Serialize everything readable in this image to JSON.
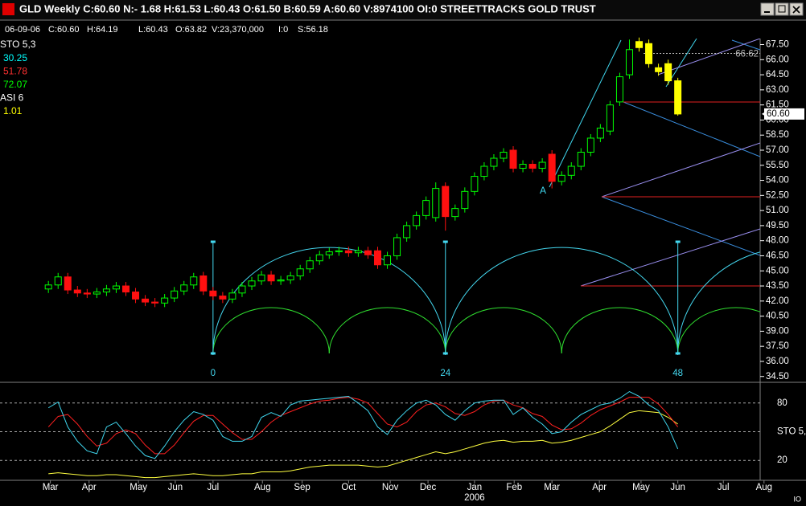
{
  "window": {
    "title": "GLD Weekly C:60.60 N:- 1.68 H:61.53 L:60.43 O:61.50 B:60.59 A:60.60 V:8974100 OI:0 STREETTRACKS GOLD TRUST"
  },
  "info_bar": [
    "06-09-06",
    "C:60.60",
    "H:64.19",
    "L:60.43",
    "O:63.82",
    "V:23,370,000",
    "I:0",
    "S:56.18"
  ],
  "indicators": [
    {
      "label": "STO 5,3",
      "color": "#ffffff"
    },
    {
      "label": "30.25",
      "color": "#00ffff"
    },
    {
      "label": "51.78",
      "color": "#ff3030"
    },
    {
      "label": "72.07",
      "color": "#00ff00"
    },
    {
      "label": "ASI 6",
      "color": "#ffffff"
    },
    {
      "label": "1.01",
      "color": "#ffff00"
    }
  ],
  "annotations": [
    "A"
  ],
  "corner_label": "IO",
  "chart_data": [
    {
      "type": "candlestick",
      "xlim": [
        -5,
        73.5
      ],
      "ylim": [
        34.0,
        68.1
      ],
      "yticks": [
        {
          "value": 67.5,
          "label": "67.50"
        },
        {
          "value": 66,
          "label": "66.00"
        },
        {
          "value": 64.5,
          "label": "64.50"
        },
        {
          "value": 63,
          "label": "63.00"
        },
        {
          "value": 61.5,
          "label": "61.50"
        },
        {
          "value": 60,
          "label": "60.00"
        },
        {
          "value": 58.5,
          "label": "58.50"
        },
        {
          "value": 57,
          "label": "57.00"
        },
        {
          "value": 55.5,
          "label": "55.50"
        },
        {
          "value": 54,
          "label": "54.00"
        },
        {
          "value": 52.5,
          "label": "52.50"
        },
        {
          "value": 51,
          "label": "51.00"
        },
        {
          "value": 49.5,
          "label": "49.50"
        },
        {
          "value": 48,
          "label": "48.00"
        },
        {
          "value": 46.5,
          "label": "46.50"
        },
        {
          "value": 45,
          "label": "45.00"
        },
        {
          "value": 43.5,
          "label": "43.50"
        },
        {
          "value": 42,
          "label": "42.00"
        },
        {
          "value": 40.5,
          "label": "40.50"
        },
        {
          "value": 39,
          "label": "39.00"
        },
        {
          "value": 37.5,
          "label": "37.50"
        },
        {
          "value": 36,
          "label": "36.00"
        },
        {
          "value": 34.5,
          "label": "34.50"
        }
      ],
      "last_price": {
        "value": 60.6,
        "label": "60.60"
      },
      "reference_line": {
        "value": 66.62,
        "label": "66.62"
      },
      "cycles": {
        "x": [
          17,
          41,
          65
        ],
        "labels": [
          "0",
          "24",
          "48"
        ],
        "color": "#44d8f0"
      },
      "series": [
        {
          "up_color": "#00ff00",
          "down_color": "#ff1010",
          "x": [
            0,
            1,
            2,
            3,
            4,
            5,
            6,
            7,
            8,
            9,
            10,
            11,
            12,
            13,
            14,
            15,
            16,
            17,
            18,
            19,
            20,
            21,
            22,
            23,
            24,
            25,
            26,
            27,
            28,
            29,
            30,
            31,
            32,
            33,
            34,
            35,
            36,
            37,
            38,
            39,
            40,
            41,
            42,
            43,
            44,
            45,
            46,
            47,
            48,
            49,
            50,
            51,
            52,
            53,
            54,
            55,
            56,
            57,
            58,
            59,
            60
          ],
          "open": [
            43.2,
            43.6,
            44.4,
            43.1,
            42.8,
            42.7,
            42.9,
            43.2,
            43.5,
            42.9,
            42.2,
            41.9,
            41.8,
            42.3,
            43.0,
            43.6,
            44.5,
            43.0,
            42.5,
            42.2,
            42.8,
            43.5,
            44.0,
            44.6,
            44.0,
            44.1,
            44.5,
            45.2,
            46.0,
            46.6,
            46.9,
            47.0,
            46.8,
            47.0,
            47.0,
            45.6,
            46.5,
            48.3,
            49.5,
            50.5,
            50.3,
            53.4,
            50.4,
            51.2,
            52.9,
            54.4,
            55.4,
            56.2,
            57.0,
            55.2,
            55.6,
            55.2,
            56.6,
            53.9,
            54.5,
            55.4,
            56.8,
            58.2,
            58.9,
            61.8,
            64.5
          ],
          "high": [
            44.0,
            44.8,
            44.8,
            43.5,
            43.2,
            43.3,
            43.6,
            43.9,
            43.9,
            43.3,
            42.6,
            42.3,
            42.7,
            43.4,
            44.0,
            44.8,
            44.9,
            43.4,
            42.9,
            43.2,
            43.9,
            44.4,
            45.0,
            45.0,
            44.5,
            44.9,
            45.6,
            46.4,
            47.0,
            47.3,
            47.4,
            47.4,
            47.4,
            47.4,
            47.4,
            46.9,
            48.7,
            49.9,
            50.9,
            52.4,
            53.8,
            53.8,
            51.6,
            53.3,
            54.8,
            55.8,
            56.6,
            57.2,
            57.4,
            56.0,
            56.0,
            56.2,
            57.0,
            54.9,
            55.8,
            57.2,
            58.6,
            59.6,
            61.9,
            64.7,
            68.0
          ],
          "low": [
            42.8,
            43.2,
            42.7,
            42.4,
            42.3,
            42.3,
            42.5,
            42.8,
            42.5,
            41.8,
            41.5,
            41.4,
            41.4,
            41.9,
            42.6,
            43.2,
            42.6,
            42.1,
            41.8,
            41.8,
            42.4,
            43.1,
            43.6,
            43.6,
            43.6,
            43.7,
            44.1,
            44.8,
            45.6,
            46.2,
            46.5,
            46.4,
            46.4,
            46.2,
            45.2,
            45.2,
            46.1,
            47.9,
            49.1,
            50.1,
            49.9,
            49.0,
            50.0,
            50.8,
            52.5,
            54.0,
            55.0,
            55.8,
            54.8,
            54.8,
            54.8,
            54.8,
            53.2,
            53.5,
            54.1,
            55.0,
            56.4,
            57.8,
            58.5,
            61.4,
            64.1
          ],
          "close": [
            43.6,
            44.4,
            43.1,
            42.8,
            42.7,
            42.9,
            43.2,
            43.5,
            42.9,
            42.2,
            41.9,
            41.8,
            42.3,
            43.0,
            43.6,
            44.4,
            43.0,
            42.5,
            42.2,
            42.8,
            43.5,
            44.0,
            44.6,
            44.0,
            44.1,
            44.5,
            45.2,
            46.0,
            46.6,
            46.9,
            47.0,
            46.8,
            47.0,
            46.6,
            45.6,
            46.5,
            48.3,
            49.5,
            50.5,
            52.0,
            53.2,
            50.4,
            51.2,
            52.9,
            54.4,
            55.4,
            56.2,
            56.8,
            55.2,
            55.6,
            55.2,
            55.8,
            53.9,
            54.5,
            55.4,
            56.8,
            58.2,
            59.2,
            61.5,
            64.3,
            67.0
          ]
        },
        {
          "color": "#ffff00",
          "x": [
            61,
            62,
            63,
            64,
            65
          ],
          "open": [
            67.8,
            67.6,
            65.2,
            65.6,
            63.9
          ],
          "high": [
            68.2,
            68.0,
            65.6,
            66.0,
            64.2
          ],
          "low": [
            66.8,
            65.2,
            64.4,
            63.5,
            60.43
          ],
          "close": [
            67.2,
            65.6,
            64.8,
            63.9,
            60.6
          ]
        }
      ],
      "xticks": [
        {
          "value": 0.2,
          "label": "Mar"
        },
        {
          "value": 4.2,
          "label": "Apr"
        },
        {
          "value": 9.3,
          "label": "May"
        },
        {
          "value": 13.1,
          "label": "Jun"
        },
        {
          "value": 17,
          "label": "Jul"
        },
        {
          "value": 22.1,
          "label": "Aug"
        },
        {
          "value": 26.2,
          "label": "Sep"
        },
        {
          "value": 31,
          "label": "Oct"
        },
        {
          "value": 35.3,
          "label": "Nov"
        },
        {
          "value": 39.2,
          "label": "Dec"
        },
        {
          "value": 44,
          "label": "Jan"
        },
        {
          "value": 48.1,
          "label": "Feb"
        },
        {
          "value": 52,
          "label": "Mar"
        },
        {
          "value": 56.9,
          "label": "Apr"
        },
        {
          "value": 61.2,
          "label": "May"
        },
        {
          "value": 65,
          "label": "Jun"
        },
        {
          "value": 69.7,
          "label": "Jul"
        },
        {
          "value": 73.9,
          "label": "Aug"
        }
      ],
      "year_ticks": [
        {
          "value": 44,
          "label": "2006"
        }
      ]
    },
    {
      "type": "line",
      "ylim": [
        0,
        100
      ],
      "yticks": [
        20,
        {
          "value": 50,
          "label": "STO 5,"
        },
        80
      ],
      "grid": true,
      "x": [
        0,
        1,
        2,
        3,
        4,
        5,
        6,
        7,
        8,
        9,
        10,
        11,
        12,
        13,
        14,
        15,
        16,
        17,
        18,
        19,
        20,
        21,
        22,
        23,
        24,
        25,
        26,
        27,
        28,
        29,
        30,
        31,
        32,
        33,
        34,
        35,
        36,
        37,
        38,
        39,
        40,
        41,
        42,
        43,
        44,
        45,
        46,
        47,
        48,
        49,
        50,
        51,
        52,
        53,
        54,
        55,
        56,
        57,
        58,
        59,
        60,
        61,
        62,
        63,
        64,
        65
      ],
      "series": [
        {
          "color": "#ffff40",
          "values": [
            6,
            7,
            6,
            5,
            4,
            4,
            5,
            5,
            4,
            3,
            2,
            2,
            3,
            4,
            5,
            6,
            5,
            4,
            4,
            5,
            6,
            6,
            8,
            8,
            8,
            9,
            11,
            13,
            14,
            15,
            15,
            15,
            15,
            14,
            13,
            14,
            17,
            20,
            23,
            26,
            29,
            27,
            29,
            32,
            35,
            38,
            40,
            41,
            39,
            40,
            40,
            41,
            38,
            39,
            41,
            44,
            47,
            50,
            56,
            63,
            70,
            72,
            71,
            70,
            65,
            58
          ]
        },
        {
          "color": "#ff2020",
          "values": [
            55,
            66,
            68,
            58,
            45,
            35,
            38,
            48,
            52,
            48,
            36,
            27,
            27,
            36,
            49,
            61,
            67,
            67,
            58,
            49,
            42,
            42,
            50,
            60,
            67,
            71,
            75,
            79,
            82,
            83,
            85,
            86,
            84,
            80,
            69,
            58,
            55,
            60,
            71,
            78,
            80,
            76,
            69,
            67,
            71,
            78,
            82,
            83,
            78,
            75,
            69,
            66,
            57,
            52,
            53,
            59,
            67,
            73,
            77,
            81,
            86,
            86,
            86,
            79,
            68,
            55
          ]
        },
        {
          "color": "#40d8f0",
          "values": [
            75,
            81,
            55,
            40,
            30,
            27,
            55,
            60,
            48,
            35,
            25,
            22,
            35,
            50,
            62,
            71,
            68,
            62,
            45,
            40,
            40,
            45,
            65,
            70,
            66,
            78,
            82,
            83,
            84,
            85,
            86,
            87,
            80,
            72,
            55,
            47,
            62,
            72,
            80,
            83,
            78,
            68,
            62,
            72,
            80,
            82,
            83,
            83,
            68,
            75,
            65,
            58,
            48,
            50,
            60,
            68,
            73,
            78,
            80,
            85,
            92,
            87,
            78,
            72,
            55,
            32
          ]
        }
      ]
    }
  ]
}
